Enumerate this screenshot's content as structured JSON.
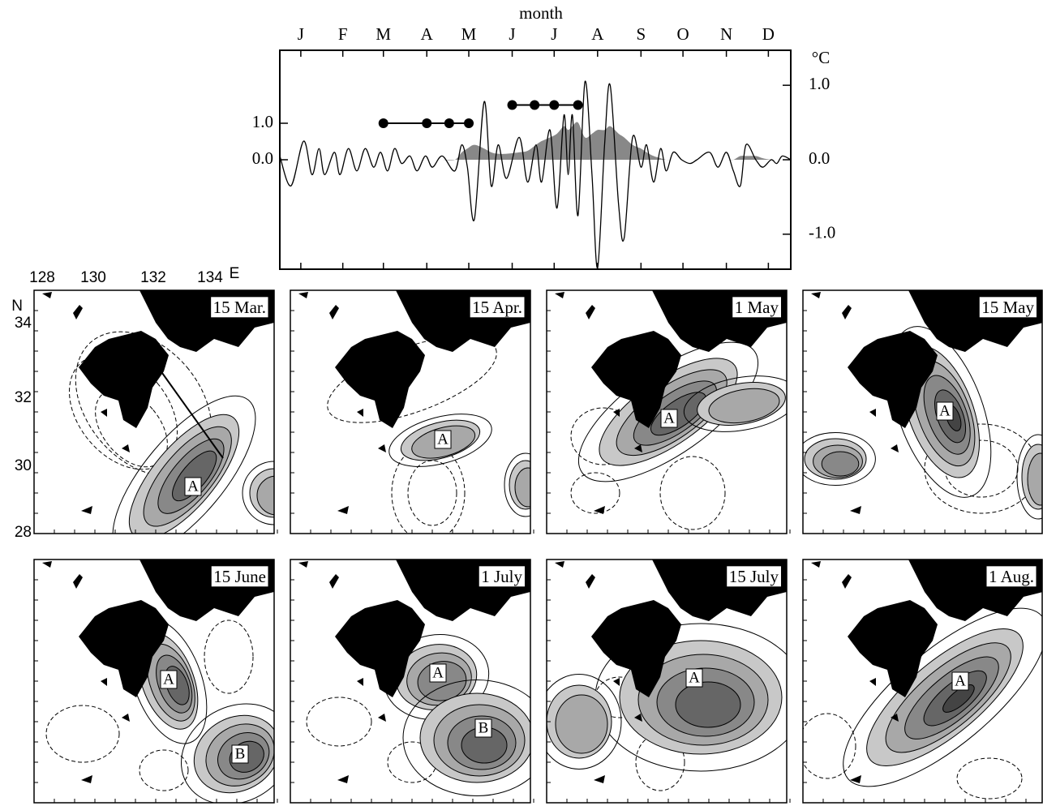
{
  "chart_data": {
    "type": "line",
    "x_label": "month",
    "y2_unit": "°C",
    "xlim": [
      0,
      365
    ],
    "xticks": [
      {
        "value": 15,
        "label": "J"
      },
      {
        "value": 45,
        "label": "F"
      },
      {
        "value": 74,
        "label": "M"
      },
      {
        "value": 105,
        "label": "A"
      },
      {
        "value": 135,
        "label": "M"
      },
      {
        "value": 166,
        "label": "J"
      },
      {
        "value": 196,
        "label": "J"
      },
      {
        "value": 227,
        "label": "A"
      },
      {
        "value": 258,
        "label": "S"
      },
      {
        "value": 288,
        "label": "O"
      },
      {
        "value": 319,
        "label": "N"
      },
      {
        "value": 349,
        "label": "D"
      }
    ],
    "ylim": [
      -3,
      3
    ],
    "yticks": [
      {
        "value": 1,
        "label": "1.0"
      },
      {
        "value": 0,
        "label": "0.0"
      }
    ],
    "y2lim": [
      -1.47,
      1.47
    ],
    "y2ticks": [
      {
        "value": 1,
        "label": "1.0"
      },
      {
        "value": 0,
        "label": "0.0"
      },
      {
        "value": -1,
        "label": "-1.0"
      }
    ],
    "x": [
      0,
      8,
      17,
      23,
      28,
      32,
      39,
      43,
      49,
      55,
      61,
      67,
      72,
      77,
      82,
      87,
      93,
      98,
      104,
      109,
      116,
      125,
      130,
      134,
      139,
      146,
      151,
      156,
      162,
      171,
      177,
      183,
      187,
      193,
      198,
      203,
      206,
      209,
      213,
      218,
      223,
      227,
      232,
      236,
      242,
      246,
      252,
      258,
      262,
      267,
      272,
      276,
      281,
      287,
      293,
      298,
      307,
      313,
      319,
      324,
      329,
      333,
      340,
      345,
      351,
      355,
      359,
      365
    ],
    "series": [
      {
        "axis": "y2",
        "color": "#000000",
        "fill": false,
        "values": [
          0.05,
          -0.35,
          0.25,
          -0.2,
          0.15,
          -0.2,
          0.1,
          -0.2,
          0.15,
          -0.15,
          0.15,
          -0.1,
          0.1,
          -0.15,
          0.15,
          -0.05,
          0.05,
          -0.15,
          0.05,
          -0.1,
          0.05,
          -0.15,
          0.2,
          -0.1,
          -0.8,
          0.78,
          -0.35,
          0.2,
          -0.25,
          0.3,
          -0.3,
          0.2,
          -0.3,
          0.4,
          -0.65,
          0.6,
          -0.2,
          0.6,
          -0.75,
          1.05,
          -0.2,
          -1.45,
          0.2,
          1.0,
          -0.6,
          -1.05,
          0.3,
          -0.1,
          0.2,
          -0.3,
          0.15,
          -0.15,
          0.1,
          0,
          -0.05,
          0,
          0.1,
          -0.1,
          0.1,
          -0.15,
          -0.35,
          0.2,
          0,
          -0.1,
          0,
          -0.05,
          0.05,
          0
        ]
      },
      {
        "axis": "y2",
        "color": "#888888",
        "fill": true,
        "values": [
          0,
          0,
          0,
          0,
          0,
          0,
          0,
          0,
          0,
          0,
          0,
          0,
          0,
          0,
          0,
          0,
          0,
          0,
          0,
          0,
          0,
          0,
          0.1,
          0.15,
          0.2,
          0.15,
          0.1,
          0.08,
          0.08,
          0.1,
          0.12,
          0.2,
          0.25,
          0.3,
          0.35,
          0.45,
          0.4,
          0.45,
          0.5,
          0.3,
          0.35,
          0.4,
          0.4,
          0.45,
          0.35,
          0.3,
          0.2,
          0.15,
          0.1,
          0.05,
          0.02,
          0,
          0,
          0,
          0,
          0,
          0,
          0,
          0,
          0,
          0.05,
          0.05,
          0.05,
          0.02,
          0,
          0,
          0,
          0
        ]
      },
      {
        "axis": "y",
        "color": "#000000",
        "marker": "dot",
        "x": [
          74,
          105,
          121,
          135
        ],
        "values": [
          1,
          1,
          1,
          1
        ]
      },
      {
        "axis": "y",
        "color": "#000000",
        "marker": "dot",
        "x": [
          166,
          182,
          196,
          213
        ],
        "values": [
          1.5,
          1.5,
          1.5,
          1.5
        ]
      }
    ]
  },
  "maps": {
    "lon_labels": [
      "128",
      "130",
      "132",
      "134",
      "E"
    ],
    "lat_labels": [
      "N",
      "34",
      "32",
      "30",
      "28"
    ],
    "panels": [
      {
        "date": "15 Mar.",
        "labels": [
          "A"
        ]
      },
      {
        "date": "15 Apr.",
        "labels": [
          "A"
        ]
      },
      {
        "date": "1 May",
        "labels": [
          "A"
        ]
      },
      {
        "date": "15 May",
        "labels": [
          "A"
        ]
      },
      {
        "date": "15 June",
        "labels": [
          "A",
          "B"
        ]
      },
      {
        "date": "1 July",
        "labels": [
          "A",
          "B"
        ]
      },
      {
        "date": "15 July",
        "labels": [
          "A"
        ]
      },
      {
        "date": "1 Aug.",
        "labels": [
          "A"
        ]
      }
    ]
  }
}
